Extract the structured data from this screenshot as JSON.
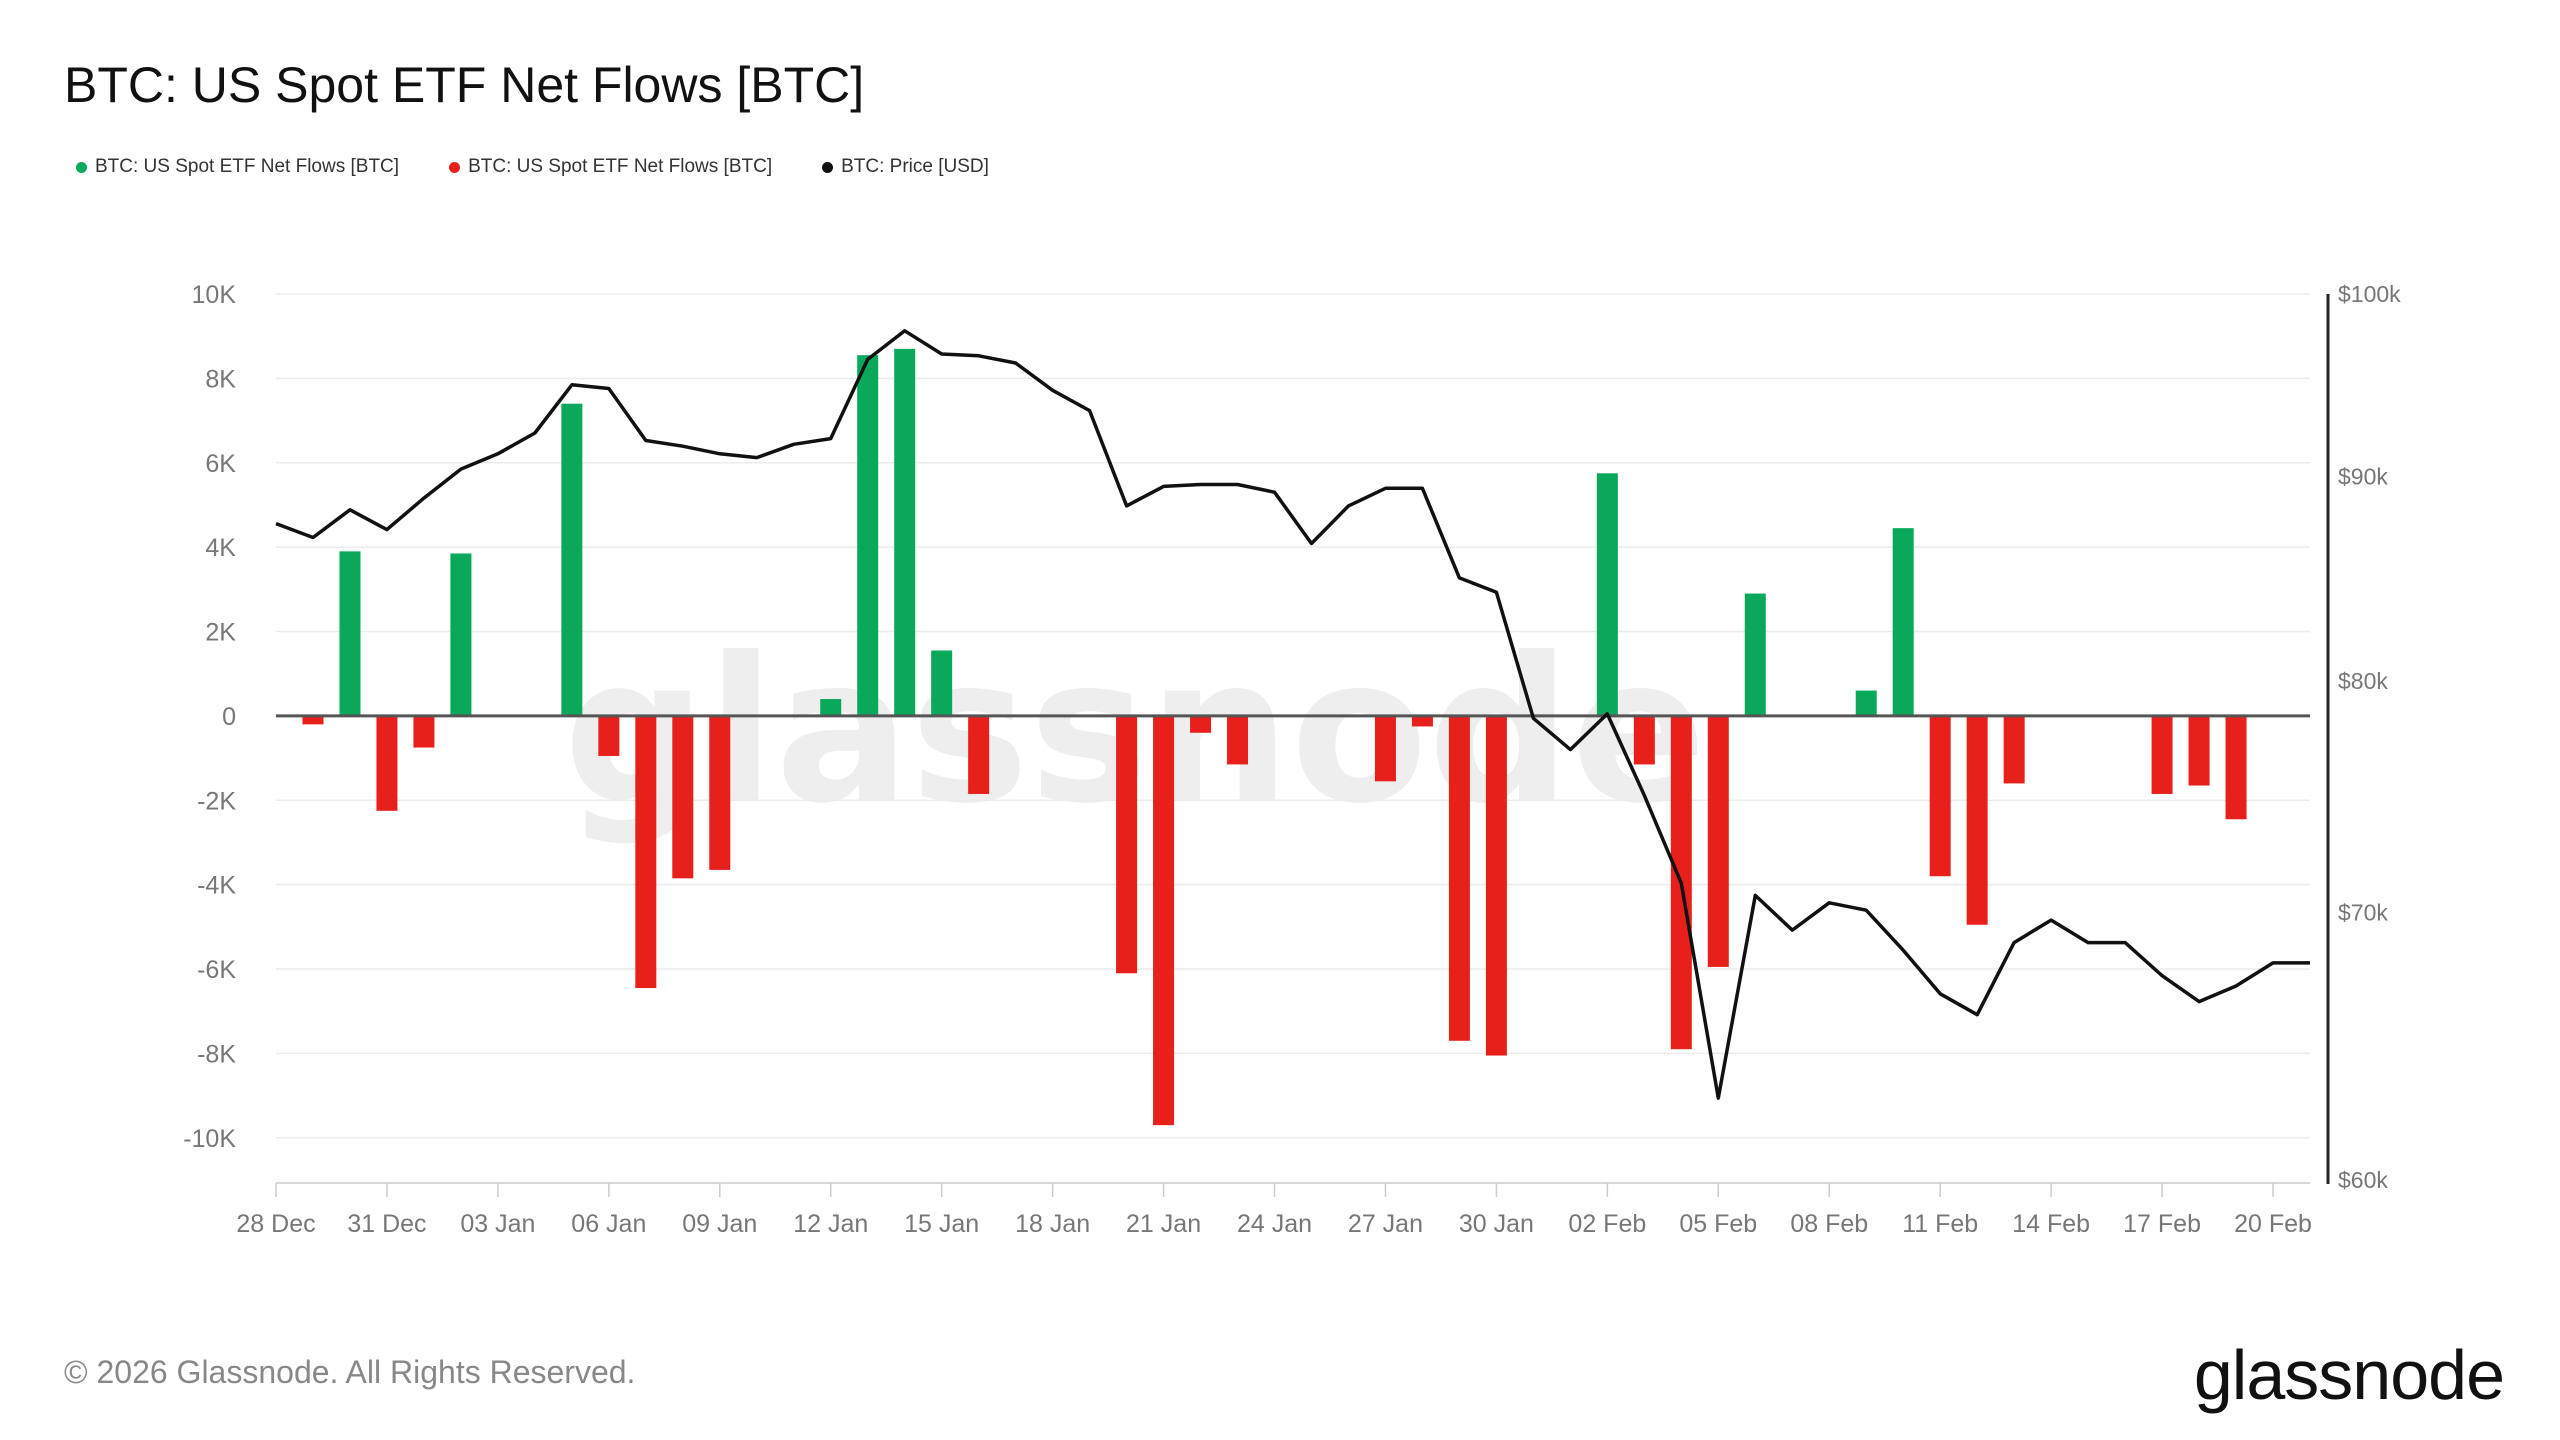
{
  "title": "BTC: US Spot ETF Net Flows [BTC]",
  "legend": [
    {
      "label": "BTC: US Spot ETF Net Flows [BTC]",
      "color": "#0aa85a"
    },
    {
      "label": "BTC: US Spot ETF Net Flows [BTC]",
      "color": "#e8201c"
    },
    {
      "label": "BTC: Price [USD]",
      "color": "#111111"
    }
  ],
  "footer": {
    "copyright": "© 2026 Glassnode. All Rights Reserved.",
    "brand": "glassnode",
    "watermark": "glassnode"
  },
  "chart_data": {
    "type": "bar",
    "title": "BTC: US Spot ETF Net Flows [BTC]",
    "start_date": "28 Dec",
    "num_days": 56,
    "x_tick_labels": [
      "28 Dec",
      "31 Dec",
      "03 Jan",
      "06 Jan",
      "09 Jan",
      "12 Jan",
      "15 Jan",
      "18 Jan",
      "21 Jan",
      "24 Jan",
      "27 Jan",
      "30 Jan",
      "02 Feb",
      "05 Feb",
      "08 Feb",
      "11 Feb",
      "14 Feb",
      "17 Feb",
      "20 Feb"
    ],
    "y_left": {
      "ylim": [
        -11000,
        10000
      ],
      "ticks": [
        10000,
        8000,
        6000,
        4000,
        2000,
        0,
        -2000,
        -4000,
        -6000,
        -8000,
        -10000
      ],
      "tick_labels": [
        "10K",
        "8K",
        "6K",
        "4K",
        "2K",
        "0",
        "-2K",
        "-4K",
        "-6K",
        "-8K",
        "-10K"
      ]
    },
    "y_right": {
      "ylim": [
        60000,
        100000
      ],
      "ticks": [
        100000,
        90000,
        80000,
        70000,
        60000
      ],
      "tick_labels": [
        "$100k",
        "$90k",
        "$80k",
        "$70k",
        "$60k"
      ],
      "scale": "log"
    },
    "series": [
      {
        "name": "BTC: US Spot ETF Net Flows [BTC]",
        "color": "#0aa85a",
        "type": "bar",
        "points": [
          {
            "day": 2,
            "value": 3900
          },
          {
            "day": 5,
            "value": 3850
          },
          {
            "day": 8,
            "value": 7400
          },
          {
            "day": 15,
            "value": 400
          },
          {
            "day": 16,
            "value": 8550
          },
          {
            "day": 17,
            "value": 8700
          },
          {
            "day": 18,
            "value": 1550
          },
          {
            "day": 36,
            "value": 5750
          },
          {
            "day": 40,
            "value": 2900
          },
          {
            "day": 43,
            "value": 600
          },
          {
            "day": 44,
            "value": 4450
          }
        ]
      },
      {
        "name": "BTC: US Spot ETF Net Flows [BTC]",
        "color": "#e8201c",
        "type": "bar",
        "points": [
          {
            "day": 1,
            "value": -200
          },
          {
            "day": 3,
            "value": -2250
          },
          {
            "day": 4,
            "value": -750
          },
          {
            "day": 9,
            "value": -950
          },
          {
            "day": 10,
            "value": -6450
          },
          {
            "day": 11,
            "value": -3850
          },
          {
            "day": 12,
            "value": -3650
          },
          {
            "day": 19,
            "value": -1850
          },
          {
            "day": 23,
            "value": -6100
          },
          {
            "day": 24,
            "value": -9700
          },
          {
            "day": 25,
            "value": -400
          },
          {
            "day": 26,
            "value": -1150
          },
          {
            "day": 30,
            "value": -1550
          },
          {
            "day": 31,
            "value": -250
          },
          {
            "day": 32,
            "value": -7700
          },
          {
            "day": 33,
            "value": -8050
          },
          {
            "day": 37,
            "value": -1150
          },
          {
            "day": 38,
            "value": -7900
          },
          {
            "day": 39,
            "value": -5950
          },
          {
            "day": 45,
            "value": -3800
          },
          {
            "day": 46,
            "value": -4950
          },
          {
            "day": 47,
            "value": -1600
          },
          {
            "day": 51,
            "value": -1850
          },
          {
            "day": 52,
            "value": -1650
          },
          {
            "day": 53,
            "value": -2450
          }
        ]
      },
      {
        "name": "BTC: Price [USD]",
        "color": "#111111",
        "type": "line",
        "axis": "right",
        "values": [
          87600,
          86900,
          88300,
          87300,
          88900,
          90400,
          91200,
          92300,
          94900,
          94700,
          91900,
          91600,
          91200,
          91000,
          91700,
          92000,
          96300,
          97900,
          96600,
          96500,
          96100,
          94600,
          93500,
          88500,
          89500,
          89600,
          89600,
          89200,
          86600,
          88500,
          89400,
          89400,
          84900,
          84200,
          78300,
          76900,
          78500,
          74900,
          71200,
          62900,
          70700,
          69300,
          70400,
          70100,
          68500,
          66800,
          66000,
          68800,
          69700,
          68800,
          68800,
          67500,
          66500,
          67100,
          68000,
          68000
        ]
      }
    ]
  }
}
